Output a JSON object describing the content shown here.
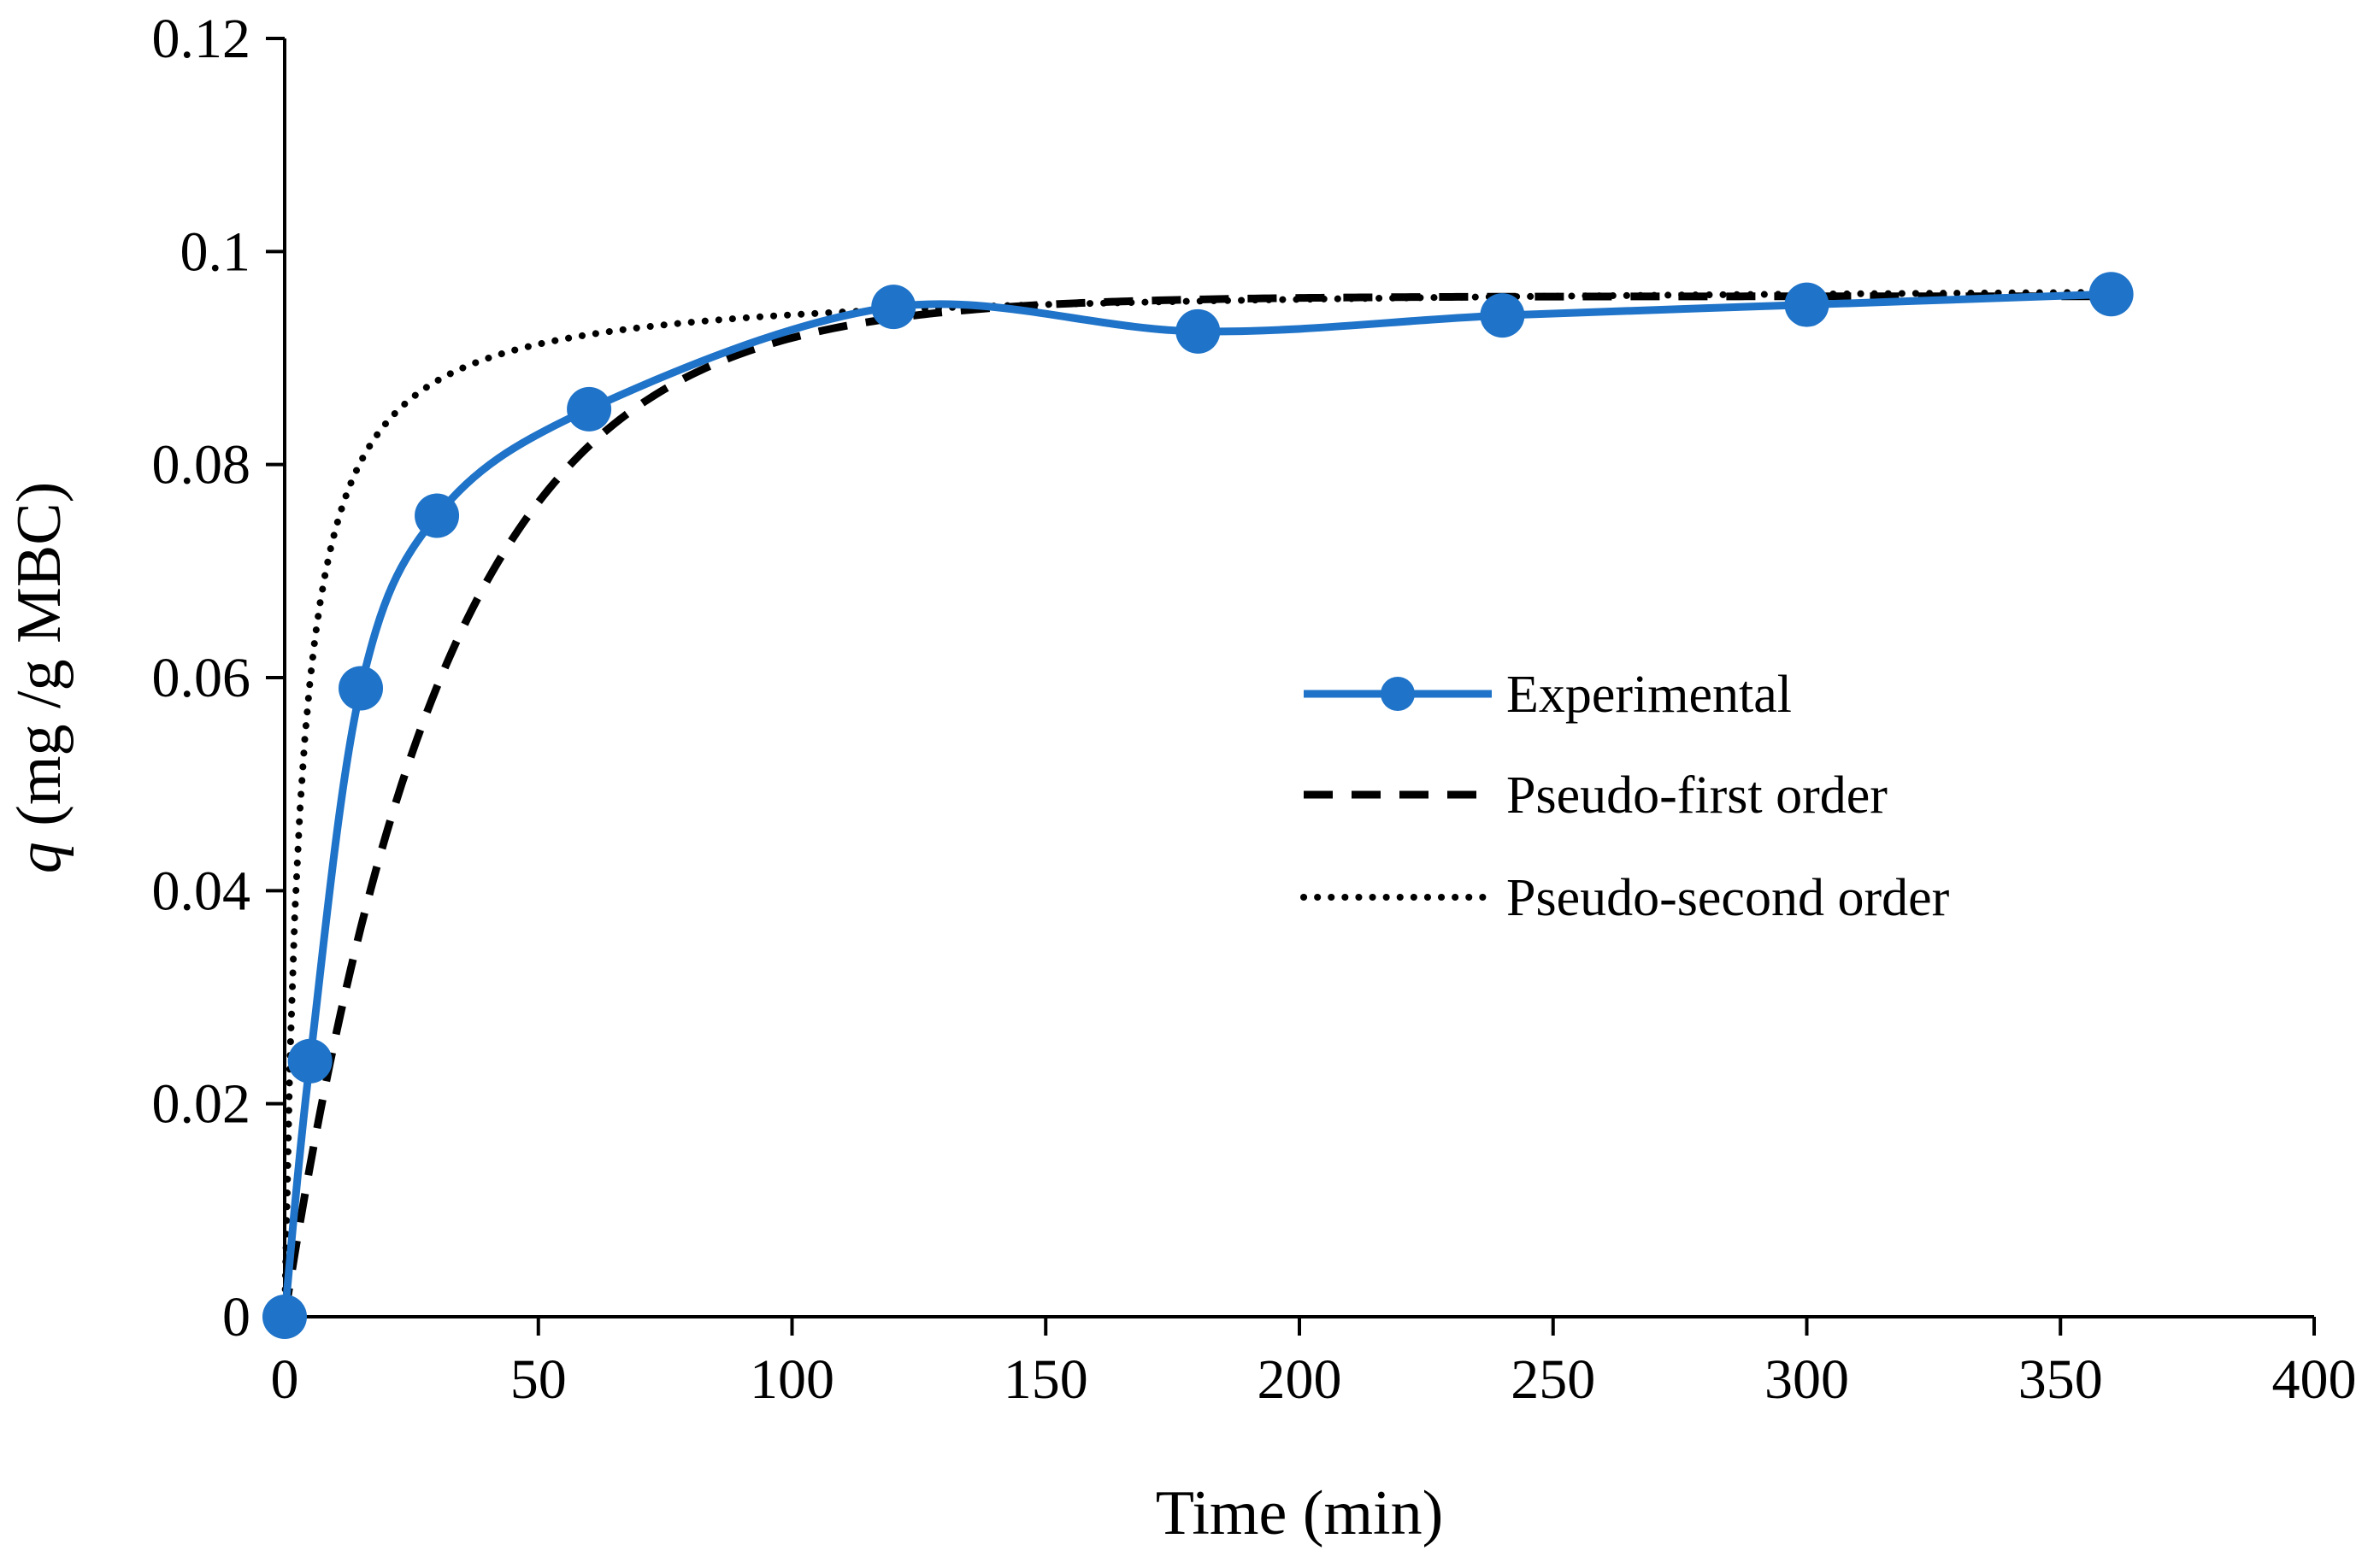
{
  "chart_data": {
    "type": "line",
    "title": "",
    "xlabel": "Time (min)",
    "ylabel_var": "q",
    "ylabel_units": " (mg /g MBC)",
    "xlim": [
      0,
      400
    ],
    "ylim": [
      0,
      0.12
    ],
    "xticks": [
      0,
      50,
      100,
      150,
      200,
      250,
      300,
      350,
      400
    ],
    "yticks": [
      0,
      0.02,
      0.04,
      0.06,
      0.08,
      0.1,
      0.12
    ],
    "xtick_labels": [
      "0",
      "50",
      "100",
      "150",
      "200",
      "250",
      "300",
      "350",
      "400"
    ],
    "ytick_labels": [
      "0",
      "0.02",
      "0.04",
      "0.06",
      "0.08",
      "0.1",
      "0.12"
    ],
    "grid": false,
    "legend_position": "center-right",
    "series": [
      {
        "name": "Experimental",
        "style": "solid-markers",
        "color": "#1f73c8",
        "x": [
          0,
          5,
          15,
          30,
          60,
          120,
          180,
          240,
          300,
          360
        ],
        "y": [
          0,
          0.024,
          0.059,
          0.0752,
          0.0852,
          0.0948,
          0.0925,
          0.094,
          0.095,
          0.096
        ]
      },
      {
        "name": "Pseudo-first order",
        "style": "dashed",
        "color": "#000000",
        "model": "pfo",
        "qe": 0.0958,
        "k": 0.032,
        "x_max": 360
      },
      {
        "name": "Pseudo-second order",
        "style": "dotted",
        "color": "#000000",
        "model": "pso",
        "qe": 0.097,
        "k": 3.3,
        "x_max": 360
      }
    ]
  }
}
